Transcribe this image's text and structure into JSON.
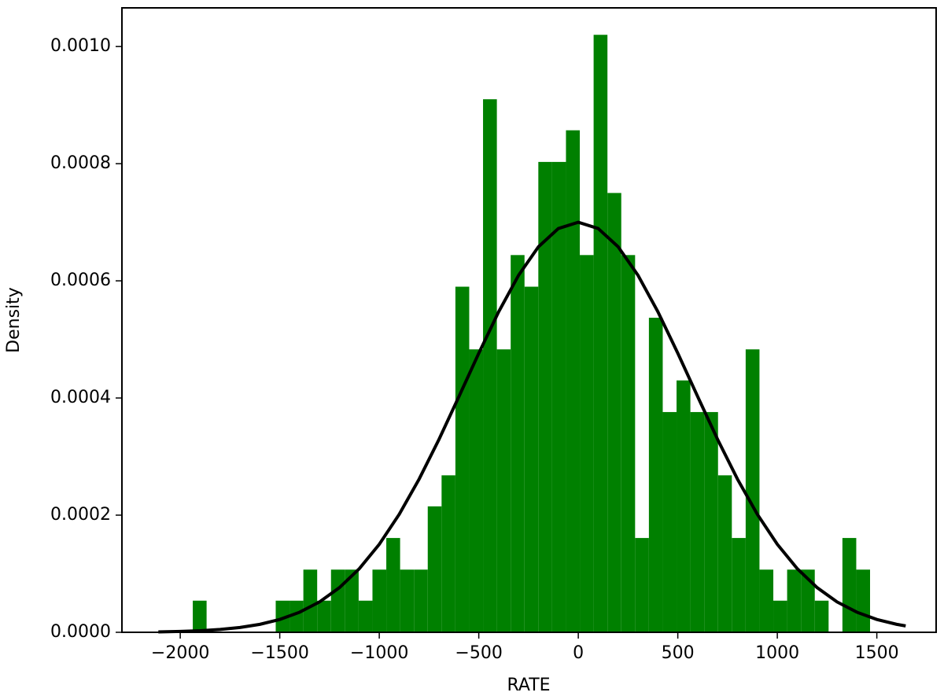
{
  "chart_data": {
    "type": "histogram",
    "xlabel": "RATE",
    "ylabel": "Density",
    "bins": [
      -1937.0,
      -1867.6,
      -1798.1,
      -1728.7,
      -1659.2,
      -1589.8,
      -1520.3,
      -1450.9,
      -1381.4,
      -1312.0,
      -1242.5,
      -1173.1,
      -1103.6,
      -1034.2,
      -964.7,
      -895.3,
      -825.8,
      -756.4,
      -686.9,
      -617.5,
      -548.0,
      -478.6,
      -409.1,
      -339.7,
      -270.2,
      -200.8,
      -131.3,
      -61.9,
      7.6,
      77.0,
      146.5,
      215.9,
      285.4,
      354.8,
      424.3,
      493.7,
      563.2,
      632.6,
      702.1,
      771.5,
      841.0,
      910.4,
      979.9,
      1049.3,
      1118.8,
      1188.2,
      1257.7,
      1327.1,
      1396.6,
      1466.0
    ],
    "values": [
      5.4e-05,
      0,
      0,
      0,
      0,
      0,
      5.4e-05,
      5.4e-05,
      0.000107,
      5.4e-05,
      0.000107,
      0.000107,
      5.4e-05,
      0.000107,
      0.000161,
      0.000107,
      0.000107,
      0.000215,
      0.000268,
      0.00059,
      0.000483,
      0.00091,
      0.000483,
      0.000644,
      0.00059,
      0.000803,
      0.000803,
      0.000857,
      0.000644,
      0.00102,
      0.00075,
      0.000644,
      0.000161,
      0.000537,
      0.000376,
      0.00043,
      0.000376,
      0.000376,
      0.000268,
      0.000161,
      0.000483,
      0.000107,
      5.4e-05,
      0.000107,
      0.000107,
      5.4e-05,
      0,
      0.000161,
      0.000107
    ],
    "color": "#008000",
    "curve": {
      "type": "line",
      "color": "#000000",
      "x": [
        -2110,
        -2000,
        -1900,
        -1800,
        -1700,
        -1600,
        -1500,
        -1400,
        -1300,
        -1200,
        -1100,
        -1000,
        -900,
        -800,
        -700,
        -600,
        -500,
        -400,
        -300,
        -200,
        -100,
        0,
        100,
        200,
        300,
        400,
        500,
        600,
        700,
        800,
        900,
        1000,
        1100,
        1200,
        1300,
        1400,
        1500,
        1600,
        1645
      ],
      "values": [
        7e-07,
        1.5e-06,
        2.7e-06,
        4.8e-06,
        8.2e-06,
        1.36e-05,
        2.19e-05,
        3.43e-05,
        5.19e-05,
        7.63e-05,
        0.0001087,
        0.0001502,
        0.0002013,
        0.0002614,
        0.0003293,
        0.0004023,
        0.0004764,
        0.0005472,
        0.0006095,
        0.0006582,
        0.0006893,
        0.0007,
        0.0006893,
        0.0006582,
        0.0006095,
        0.0005472,
        0.0004764,
        0.0004023,
        0.0003293,
        0.0002614,
        0.0002013,
        0.0001502,
        0.0001087,
        7.63e-05,
        5.19e-05,
        3.43e-05,
        2.19e-05,
        1.36e-05,
        1.09e-05
      ]
    },
    "xlim": [
      -2293,
      1798
    ],
    "ylim": [
      0,
      0.001066
    ],
    "xticks": [
      {
        "value": -2000,
        "label": "−2000"
      },
      {
        "value": -1500,
        "label": "−1500"
      },
      {
        "value": -1000,
        "label": "−1000"
      },
      {
        "value": -500,
        "label": "−500"
      },
      0,
      500,
      1000,
      1500
    ],
    "yticks": [
      {
        "value": 0,
        "label": "0.0000"
      },
      {
        "value": 0.0002,
        "label": "0.0002"
      },
      {
        "value": 0.0004,
        "label": "0.0004"
      },
      {
        "value": 0.0006,
        "label": "0.0006"
      },
      {
        "value": 0.0008,
        "label": "0.0008"
      },
      {
        "value": 0.001,
        "label": "0.0010"
      }
    ]
  }
}
